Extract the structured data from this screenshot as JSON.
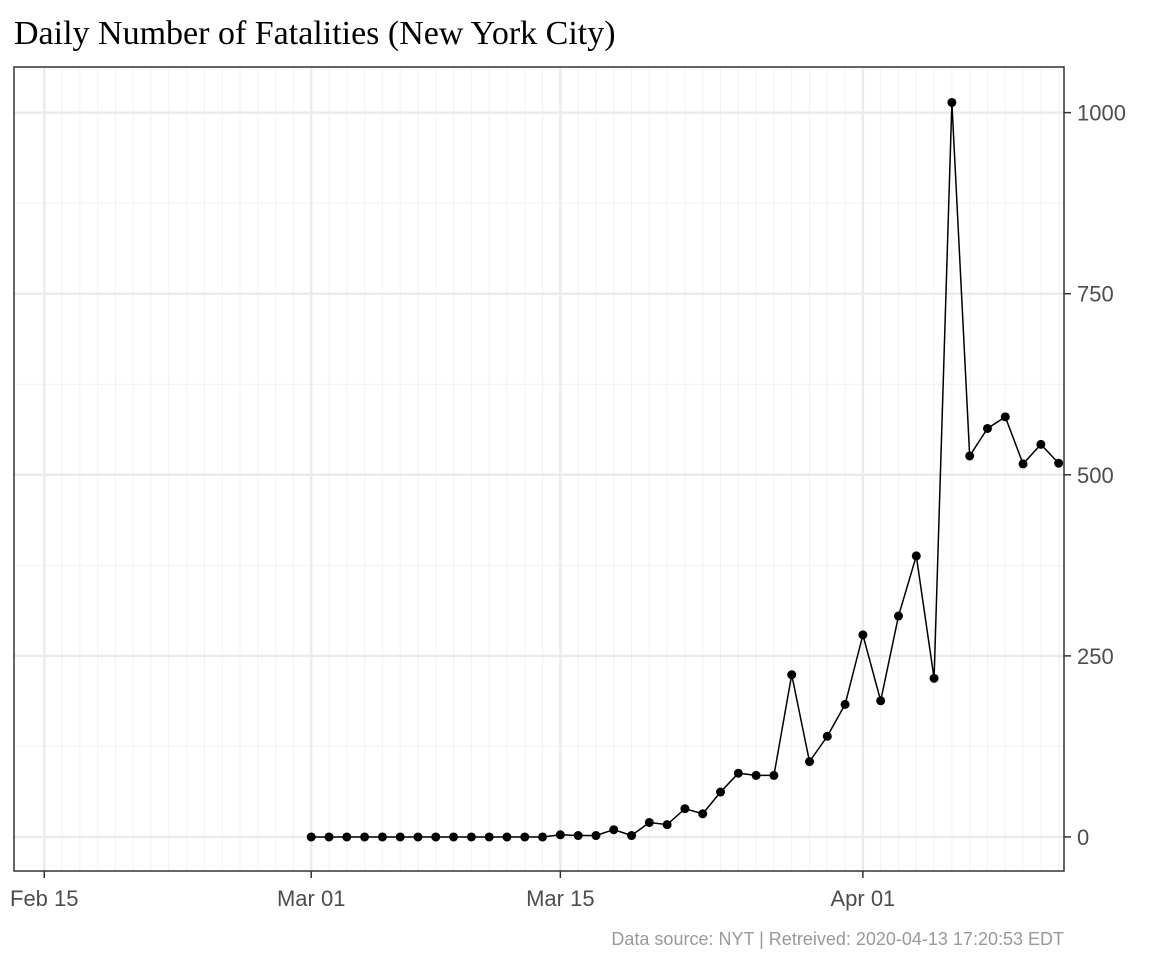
{
  "chart_data": {
    "type": "line",
    "title": "Daily Number of Fatalities (New York City)",
    "caption": "Data source: NYT  |  Retreived: 2020-04-13 17:20:53 EDT",
    "xlabel": "",
    "ylabel": "",
    "x_axis": {
      "type": "date",
      "range": [
        "2020-02-15",
        "2020-04-12"
      ],
      "ticks": [
        {
          "date": "2020-02-15",
          "label": "Feb 15"
        },
        {
          "date": "2020-03-01",
          "label": "Mar 01"
        },
        {
          "date": "2020-03-15",
          "label": "Mar 15"
        },
        {
          "date": "2020-04-01",
          "label": "Apr 01"
        }
      ]
    },
    "y_axis": {
      "position": "right",
      "ylim": [
        -47,
        1063
      ],
      "ticks": [
        0,
        250,
        500,
        750,
        1000
      ]
    },
    "grid": true,
    "series": [
      {
        "x": [
          "2020-03-01",
          "2020-03-02",
          "2020-03-03",
          "2020-03-04",
          "2020-03-05",
          "2020-03-06",
          "2020-03-07",
          "2020-03-08",
          "2020-03-09",
          "2020-03-10",
          "2020-03-11",
          "2020-03-12",
          "2020-03-13",
          "2020-03-14",
          "2020-03-15",
          "2020-03-16",
          "2020-03-17",
          "2020-03-18",
          "2020-03-19",
          "2020-03-20",
          "2020-03-21",
          "2020-03-22",
          "2020-03-23",
          "2020-03-24",
          "2020-03-25",
          "2020-03-26",
          "2020-03-27",
          "2020-03-28",
          "2020-03-29",
          "2020-03-30",
          "2020-03-31",
          "2020-04-01",
          "2020-04-02",
          "2020-04-03",
          "2020-04-04",
          "2020-04-05",
          "2020-04-06",
          "2020-04-07",
          "2020-04-08",
          "2020-04-09",
          "2020-04-10",
          "2020-04-11",
          "2020-04-12"
        ],
        "values": [
          0,
          0,
          0,
          0,
          0,
          0,
          0,
          0,
          0,
          0,
          0,
          0,
          0,
          0,
          3,
          2,
          2,
          10,
          2,
          20,
          17,
          39,
          32,
          62,
          88,
          85,
          85,
          224,
          104,
          139,
          183,
          279,
          188,
          305,
          388,
          219,
          1014,
          526,
          564,
          580,
          515,
          542,
          516
        ]
      }
    ]
  }
}
